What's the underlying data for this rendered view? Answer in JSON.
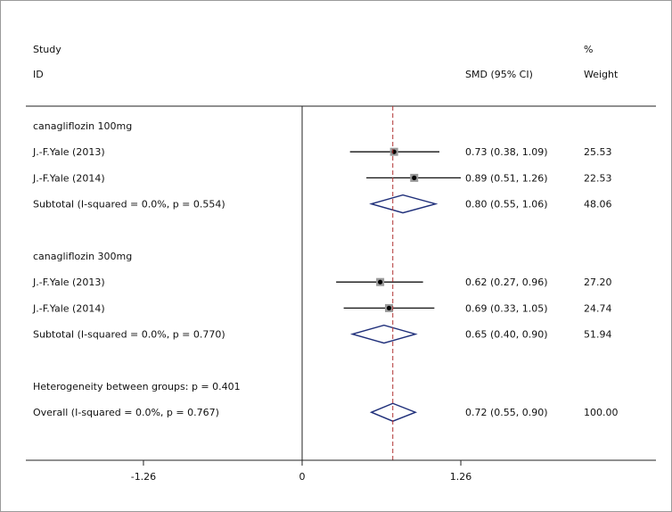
{
  "chart_data": {
    "type": "forest",
    "header": {
      "study_line1": "Study",
      "study_line2": "ID",
      "smd": "SMD (95% CI)",
      "weight_line1": "%",
      "weight_line2": "Weight"
    },
    "effect_label": "SMD (95% CI)",
    "x_ticks": [
      {
        "value": -1.26,
        "label": "-1.26"
      },
      {
        "value": 0,
        "label": "0"
      },
      {
        "value": 1.26,
        "label": "1.26"
      }
    ],
    "xlim": [
      -2.2,
      2.7
    ],
    "overall_line": 0.72,
    "rows": [
      {
        "kind": "group",
        "label": "canagliflozin 100mg"
      },
      {
        "kind": "study",
        "label": "J.-F.Yale (2013)",
        "est": 0.73,
        "lo": 0.38,
        "hi": 1.09,
        "ci_text": "0.73 (0.38, 1.09)",
        "weight": "25.53"
      },
      {
        "kind": "study",
        "label": "J.-F.Yale (2014)",
        "est": 0.89,
        "lo": 0.51,
        "hi": 1.26,
        "ci_text": "0.89 (0.51, 1.26)",
        "weight": "22.53"
      },
      {
        "kind": "subtotal",
        "label": "Subtotal  (I-squared = 0.0%, p = 0.554)",
        "est": 0.8,
        "lo": 0.55,
        "hi": 1.06,
        "ci_text": "0.80 (0.55, 1.06)",
        "weight": "48.06"
      },
      {
        "kind": "blank"
      },
      {
        "kind": "group",
        "label": "canagliflozin 300mg"
      },
      {
        "kind": "study",
        "label": "J.-F.Yale (2013)",
        "est": 0.62,
        "lo": 0.27,
        "hi": 0.96,
        "ci_text": "0.62 (0.27, 0.96)",
        "weight": "27.20"
      },
      {
        "kind": "study",
        "label": "J.-F.Yale (2014)",
        "est": 0.69,
        "lo": 0.33,
        "hi": 1.05,
        "ci_text": "0.69 (0.33, 1.05)",
        "weight": "24.74"
      },
      {
        "kind": "subtotal",
        "label": "Subtotal  (I-squared = 0.0%, p = 0.770)",
        "est": 0.65,
        "lo": 0.4,
        "hi": 0.9,
        "ci_text": "0.65 (0.40, 0.90)",
        "weight": "51.94"
      },
      {
        "kind": "blank"
      },
      {
        "kind": "note",
        "label": "Heterogeneity between groups: p = 0.401"
      },
      {
        "kind": "overall",
        "label": "Overall  (I-squared = 0.0%, p = 0.767)",
        "est": 0.72,
        "lo": 0.55,
        "hi": 0.9,
        "ci_text": "0.72 (0.55, 0.90)",
        "weight": "100.00"
      }
    ],
    "colors": {
      "diamond": "#1f2f7a",
      "overall_line": "#b03030",
      "axis": "#222222",
      "text": "#111111"
    }
  }
}
